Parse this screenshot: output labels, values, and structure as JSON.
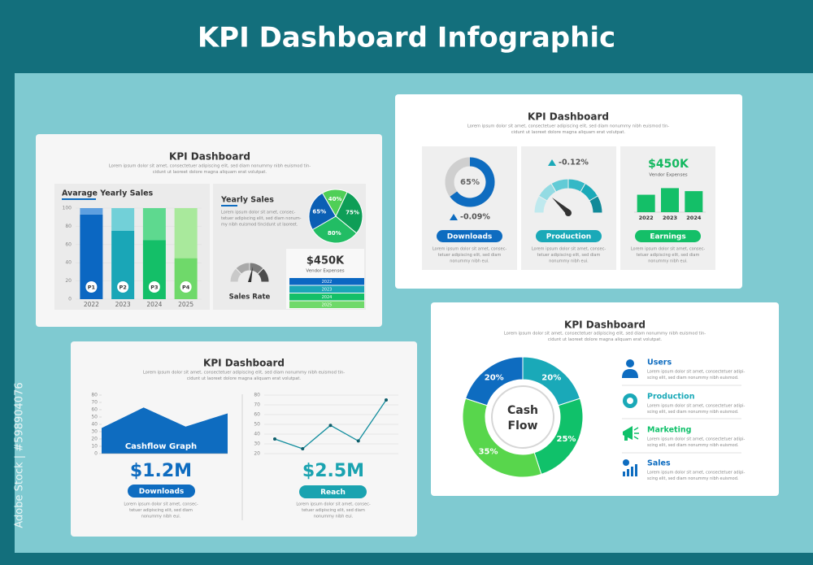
{
  "title": "KPI Dashboard Infographic",
  "watermark": "Adobe Stock | #598904076",
  "slides": [
    {
      "title": "KPI Dashboard",
      "desc": [
        "Lorem ipsum dolor sit amet, consectetuer adipiscing elit, sed diam nonummy nibh euismod tin-",
        "cidunt ut laoreet dolore magna aliquam erat volutpat."
      ],
      "bar_chart": {
        "type": "bar",
        "title": "Avarage Yearly Sales",
        "categories": [
          "2022",
          "2023",
          "2024",
          "2025"
        ],
        "bar_labels": [
          "P1",
          "P2",
          "P3",
          "P4"
        ],
        "series": [
          {
            "colors": [
              "#0b67c2",
              "#1aa6b7",
              "#14bf68",
              "#6fd96a"
            ],
            "values": [
              93,
              75,
              65,
              45
            ]
          },
          {
            "colors": [
              "#5d9fe0",
              "#72d0d8",
              "#5ed98f",
              "#a9e99c"
            ],
            "values": [
              7,
              25,
              35,
              55
            ]
          }
        ],
        "stacked": true,
        "ylim": [
          0,
          100
        ],
        "yticks": [
          0,
          20,
          40,
          60,
          80,
          100
        ]
      },
      "pie_chart": {
        "type": "pie",
        "title": "Yearly Sales",
        "desc": [
          "Lorem ipsum dolor sit amet, consec-",
          "tetuer adipiscing elit, sed diam nonum-",
          "my nibh euismod tincidunt ut laoreet."
        ],
        "values": [
          40,
          75,
          80,
          65
        ],
        "value_labels": [
          "40%",
          "75%",
          "80%",
          "65%"
        ],
        "colors": [
          "#4fcf57",
          "#0e9e57",
          "#22bd64",
          "#0b5fb4"
        ]
      },
      "gauge_label": "Sales Rate",
      "expense": {
        "value": "$450K",
        "label": "Vendor Expenses",
        "years": [
          "2022",
          "2023",
          "2024",
          "2025"
        ]
      }
    },
    {
      "title": "KPI Dashboard",
      "desc": [
        "Lorem ipsum dolor sit amet, consectetuer adipiscing elit, sed diam nonummy nibh euismod tin-",
        "cidunt ut laoreet dolore magna aliquam erat volutpat."
      ],
      "cards": [
        {
          "type": "pie",
          "values": [
            65
          ],
          "value_labels": [
            "65%"
          ],
          "color": "#0e6cc0",
          "change": "-0.09%",
          "button": "Downloads",
          "desc": [
            "Lorem ipsum dolor sit amet, consec-",
            "tetuer adipiscing elit, sed diam",
            "nonummy nibh eui."
          ]
        },
        {
          "change": "-0.12%",
          "button": "Production",
          "desc": [
            "Lorem ipsum dolor sit amet, consec-",
            "tetuer adipiscing elit, sed diam",
            "nonummy nibh eui."
          ]
        },
        {
          "type": "bar",
          "value": "$450K",
          "label": "Vendor Expenses",
          "categories": [
            "2022",
            "2023",
            "2024"
          ],
          "values": [
            58,
            80,
            70
          ],
          "ylim": [
            0,
            100
          ],
          "color": "#14bf68",
          "button": "Earnings",
          "desc": [
            "Lorem ipsum dolor sit amet, consec-",
            "tetuer adipiscing elit, sed diam",
            "nonummy nibh eui."
          ]
        }
      ]
    },
    {
      "title": "KPI Dashboard",
      "desc": [
        "Lorem ipsum dolor sit amet, consectetuer adipiscing elit, sed diam nonummy nibh euismod tin-",
        "cidunt ut laoreet dolore magna aliquam erat volutpat."
      ],
      "area_chart": {
        "type": "area",
        "title": "Cashflow Graph",
        "categories": [
          null,
          null,
          null,
          null
        ],
        "values": [
          35,
          63,
          37,
          55
        ],
        "color": "#0e6cc0",
        "ylim": [
          0,
          80
        ],
        "yticks": [
          0,
          10,
          20,
          30,
          40,
          50,
          60,
          70,
          80
        ]
      },
      "area_amount": "$1.2M",
      "area_button": "Downloads",
      "area_desc": [
        "Lorem ipsum dolor sit amet, consec-",
        "tetuer adipiscing elit, sed diam",
        "nonummy nibh eui."
      ],
      "line_chart": {
        "type": "line",
        "categories": [
          null,
          null,
          null,
          null,
          null
        ],
        "values": [
          35,
          25,
          49,
          33,
          75
        ],
        "color": "#138e9e",
        "ylim": [
          20,
          80
        ],
        "yticks": [
          20,
          30,
          40,
          50,
          60,
          70,
          80
        ],
        "grid": true
      },
      "line_amount": "$2.5M",
      "line_button": "Reach",
      "line_desc": [
        "Lorem ipsum dolor sit amet, consec-",
        "tetuer adipiscing elit, sed diam",
        "nonummy nibh eui."
      ]
    },
    {
      "title": "KPI Dashboard",
      "desc": [
        "Lorem ipsum dolor sit amet, consectetuer adipiscing elit, sed diam nonummy nibh euismod tin-",
        "cidunt ut laoreet dolore magna aliquam erat volutpat."
      ],
      "donut": {
        "type": "pie",
        "center_label": [
          "Cash",
          "Flow"
        ],
        "values": [
          20,
          25,
          35,
          20
        ],
        "value_labels": [
          "20%",
          "25%",
          "35%",
          "20%"
        ],
        "colors": [
          "#1aa9b8",
          "#10c16a",
          "#58d64c",
          "#0e6cc0"
        ]
      },
      "items": [
        {
          "title": "Users",
          "desc": [
            "Lorem ipsum dolor sit amet, consectetuer adipi-",
            "scing elit, sed diam nonummy nibh euismod."
          ]
        },
        {
          "title": "Production",
          "desc": [
            "Lorem ipsum dolor sit amet, consectetuer adipi-",
            "scing elit, sed diam nonummy nibh euismod."
          ]
        },
        {
          "title": "Marketing",
          "desc": [
            "Lorem ipsum dolor sit amet, consectetuer adipi-",
            "scing elit, sed diam nonummy nibh euismod."
          ]
        },
        {
          "title": "Sales",
          "desc": [
            "Lorem ipsum dolor sit amet, consectetuer adipi-",
            "scing elit, sed diam nonummy nibh euismod."
          ]
        }
      ]
    }
  ]
}
